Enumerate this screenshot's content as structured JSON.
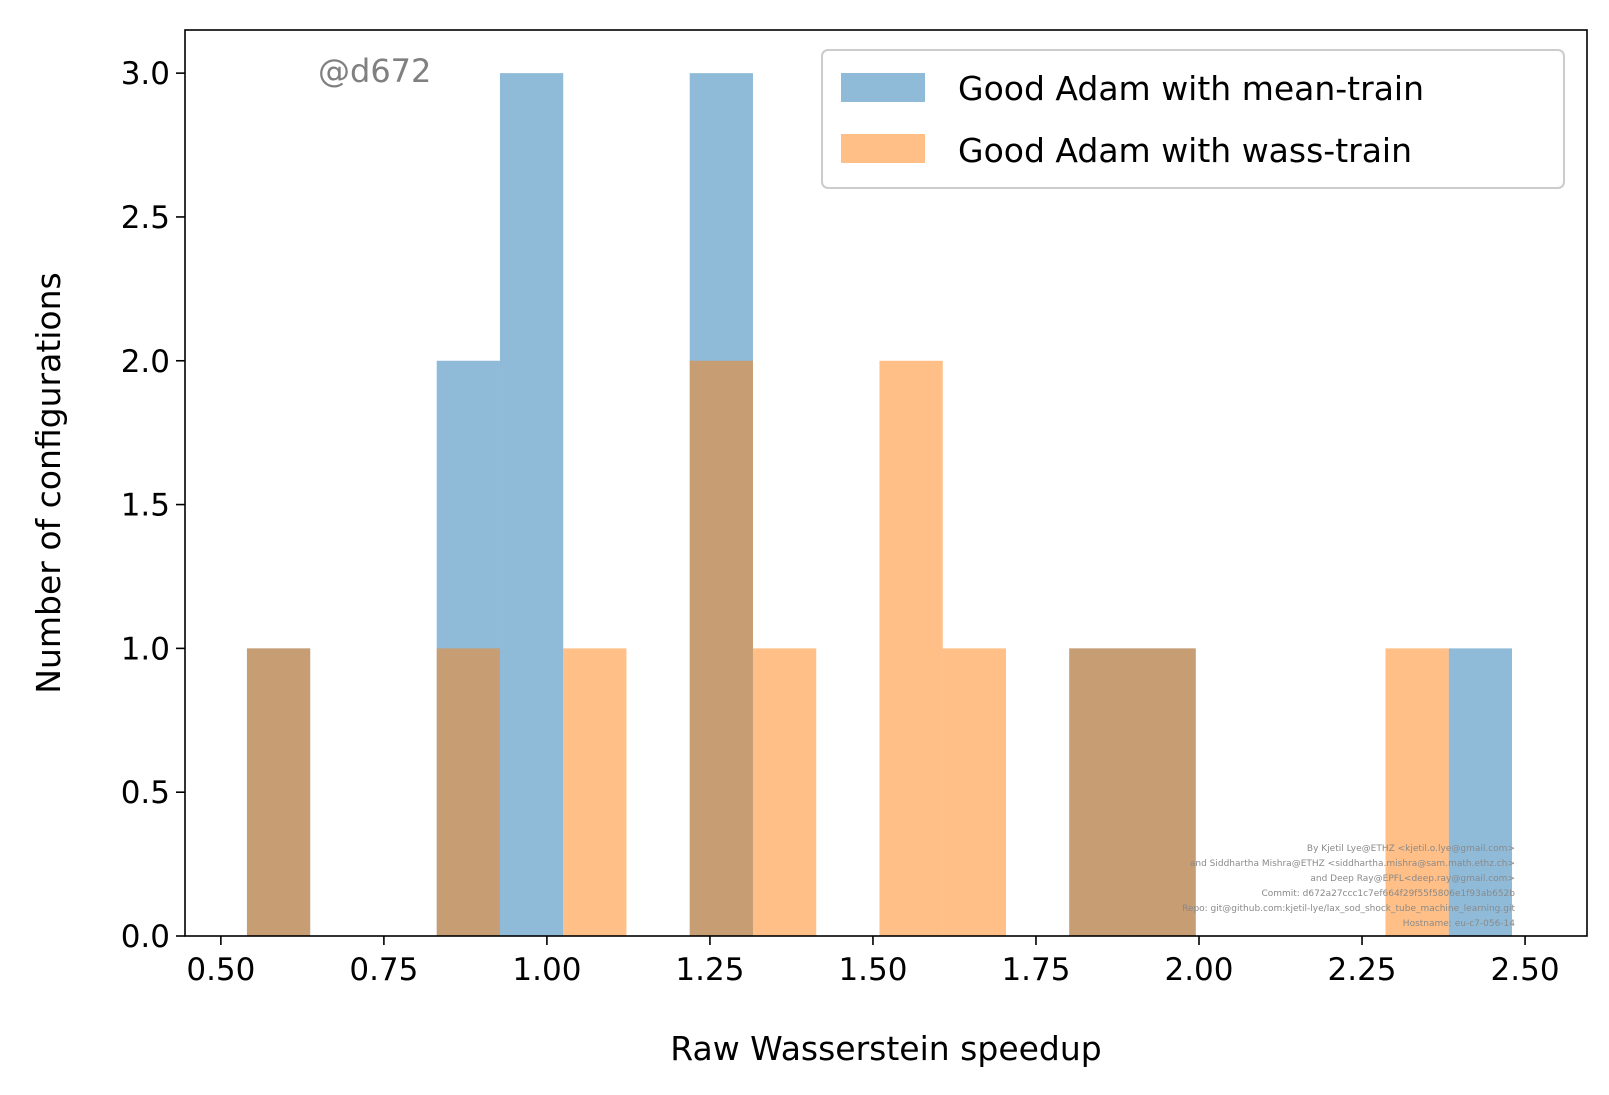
{
  "chart_data": {
    "type": "bar",
    "subtype": "overlapping histogram",
    "xlabel": "Raw Wasserstein speedup",
    "ylabel": "Number of configurations",
    "xlim": [
      0.445,
      2.595
    ],
    "ylim": [
      0,
      3.15
    ],
    "xticks": [
      "0.50",
      "0.75",
      "1.00",
      "1.25",
      "1.50",
      "1.75",
      "2.00",
      "2.25",
      "2.50"
    ],
    "yticks": [
      "0.0",
      "0.5",
      "1.0",
      "1.5",
      "2.0",
      "2.5",
      "3.0"
    ],
    "grid": false,
    "legend_position": "top-right",
    "series": [
      {
        "name": "Good Adam with mean-train",
        "color": "#1f77b4",
        "alpha": 0.5,
        "bins": [
          {
            "x0": 0.54,
            "x1": 0.637,
            "count": 1
          },
          {
            "x0": 0.831,
            "x1": 0.928,
            "count": 2
          },
          {
            "x0": 0.928,
            "x1": 1.025,
            "count": 3
          },
          {
            "x0": 1.219,
            "x1": 1.316,
            "count": 3
          },
          {
            "x0": 1.801,
            "x1": 1.898,
            "count": 1
          },
          {
            "x0": 1.898,
            "x1": 1.995,
            "count": 1
          },
          {
            "x0": 2.383,
            "x1": 2.48,
            "count": 1
          }
        ]
      },
      {
        "name": "Good Adam with wass-train",
        "color": "#ff7f0e",
        "alpha": 0.5,
        "bins": [
          {
            "x0": 0.54,
            "x1": 0.637,
            "count": 1
          },
          {
            "x0": 0.831,
            "x1": 0.928,
            "count": 1
          },
          {
            "x0": 1.025,
            "x1": 1.122,
            "count": 1
          },
          {
            "x0": 1.219,
            "x1": 1.316,
            "count": 2
          },
          {
            "x0": 1.316,
            "x1": 1.413,
            "count": 1
          },
          {
            "x0": 1.51,
            "x1": 1.607,
            "count": 2
          },
          {
            "x0": 1.607,
            "x1": 1.704,
            "count": 1
          },
          {
            "x0": 1.801,
            "x1": 1.898,
            "count": 1
          },
          {
            "x0": 1.898,
            "x1": 1.995,
            "count": 1
          },
          {
            "x0": 2.286,
            "x1": 2.383,
            "count": 1
          }
        ]
      }
    ],
    "annotations": {
      "watermark": "@d672",
      "credits": [
        "By Kjetil Lye@ETHZ <kjetil.o.lye@gmail.com>",
        "and Siddhartha Mishra@ETHZ <siddhartha.mishra@sam.math.ethz.ch>",
        "and Deep Ray@EPFL<deep.ray@gmail.com>",
        "Commit: d672a27ccc1c7ef664f29f55f5806e1f93ab652b",
        "Repo: git@github.com:kjetil-lye/lax_sod_shock_tube_machine_learning.git",
        "Hostname: eu-c7-056-14"
      ]
    }
  }
}
